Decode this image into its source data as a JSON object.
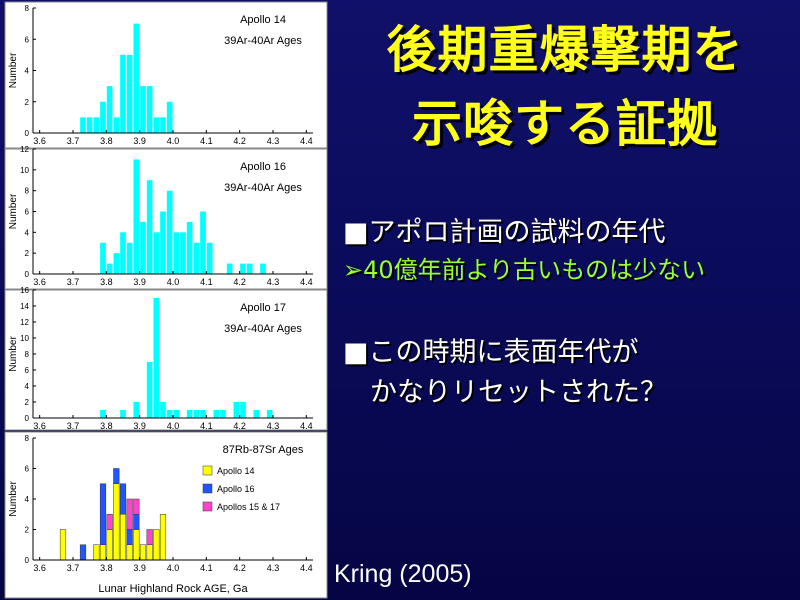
{
  "slide": {
    "title_line1": "後期重爆撃期を",
    "title_line2": "示唆する証拠",
    "bullet1": "■アポロ計画の試料の年代",
    "sub_bullet1": "➢40億年前より古いものは少ない",
    "bullet2_line1": "■この時期に表面年代が",
    "bullet2_line2": "かなりリセットされた？",
    "citation": "Kring (2005)"
  },
  "colors": {
    "background": "#0b0b5c",
    "title": "#ffff1a",
    "bullet": "#ffffff",
    "sub_bullet": "#99ff33",
    "panel_bg": "#ffffff",
    "apollo14": "#ffff00",
    "apollo16": "#2255ff",
    "apollo15_17": "#ff44cc",
    "cyan_bar": "#00ffff"
  },
  "chart_data": [
    {
      "type": "bar",
      "title": "Apollo 14",
      "subtitle": "39Ar-40Ar Ages",
      "ylabel": "Number",
      "ylim": [
        0,
        8
      ],
      "yticks": [
        0,
        2,
        4,
        6,
        8
      ],
      "xlim": [
        3.58,
        4.42
      ],
      "xticks": [
        "3.6",
        "3.7",
        "3.8",
        "3.9",
        "4.0",
        "4.1",
        "4.2",
        "4.3",
        "4.4"
      ],
      "bin_width": 0.02,
      "series": [
        {
          "color": "#00ffff",
          "bins": [
            {
              "x": 3.73,
              "value": 1
            },
            {
              "x": 3.75,
              "value": 1
            },
            {
              "x": 3.77,
              "value": 1
            },
            {
              "x": 3.79,
              "value": 2
            },
            {
              "x": 3.81,
              "value": 3
            },
            {
              "x": 3.83,
              "value": 1
            },
            {
              "x": 3.85,
              "value": 5
            },
            {
              "x": 3.87,
              "value": 5
            },
            {
              "x": 3.89,
              "value": 7
            },
            {
              "x": 3.91,
              "value": 3
            },
            {
              "x": 3.93,
              "value": 3
            },
            {
              "x": 3.95,
              "value": 1
            },
            {
              "x": 3.97,
              "value": 1
            },
            {
              "x": 3.99,
              "value": 2
            }
          ]
        }
      ]
    },
    {
      "type": "bar",
      "title": "Apollo 16",
      "subtitle": "39Ar-40Ar Ages",
      "ylabel": "Number",
      "ylim": [
        0,
        12
      ],
      "yticks": [
        0,
        2,
        4,
        6,
        8,
        10,
        12
      ],
      "xlim": [
        3.58,
        4.42
      ],
      "xticks": [
        "3.6",
        "3.7",
        "3.8",
        "3.9",
        "4.0",
        "4.1",
        "4.2",
        "4.3",
        "4.4"
      ],
      "bin_width": 0.02,
      "series": [
        {
          "color": "#00ffff",
          "bins": [
            {
              "x": 3.79,
              "value": 3
            },
            {
              "x": 3.81,
              "value": 1
            },
            {
              "x": 3.83,
              "value": 2
            },
            {
              "x": 3.85,
              "value": 4
            },
            {
              "x": 3.87,
              "value": 3
            },
            {
              "x": 3.89,
              "value": 11
            },
            {
              "x": 3.91,
              "value": 5
            },
            {
              "x": 3.93,
              "value": 9
            },
            {
              "x": 3.95,
              "value": 4
            },
            {
              "x": 3.97,
              "value": 6
            },
            {
              "x": 3.99,
              "value": 8
            },
            {
              "x": 4.01,
              "value": 4
            },
            {
              "x": 4.03,
              "value": 4
            },
            {
              "x": 4.05,
              "value": 5
            },
            {
              "x": 4.07,
              "value": 3
            },
            {
              "x": 4.09,
              "value": 6
            },
            {
              "x": 4.11,
              "value": 3
            },
            {
              "x": 4.17,
              "value": 1
            },
            {
              "x": 4.21,
              "value": 1
            },
            {
              "x": 4.23,
              "value": 1
            },
            {
              "x": 4.27,
              "value": 1
            }
          ]
        }
      ]
    },
    {
      "type": "bar",
      "title": "Apollo 17",
      "subtitle": "39Ar-40Ar Ages",
      "ylabel": "Number",
      "ylim": [
        0,
        16
      ],
      "yticks": [
        0,
        2,
        4,
        6,
        8,
        10,
        12,
        14,
        16
      ],
      "xlim": [
        3.58,
        4.42
      ],
      "xticks": [
        "3.6",
        "3.7",
        "3.8",
        "3.9",
        "4.0",
        "4.1",
        "4.2",
        "4.3",
        "4.4"
      ],
      "bin_width": 0.02,
      "series": [
        {
          "color": "#00ffff",
          "bins": [
            {
              "x": 3.79,
              "value": 1
            },
            {
              "x": 3.85,
              "value": 1
            },
            {
              "x": 3.89,
              "value": 2
            },
            {
              "x": 3.93,
              "value": 7
            },
            {
              "x": 3.95,
              "value": 15
            },
            {
              "x": 3.97,
              "value": 2
            },
            {
              "x": 3.99,
              "value": 1
            },
            {
              "x": 4.01,
              "value": 1
            },
            {
              "x": 4.05,
              "value": 1
            },
            {
              "x": 4.07,
              "value": 1
            },
            {
              "x": 4.09,
              "value": 1
            },
            {
              "x": 4.13,
              "value": 1
            },
            {
              "x": 4.15,
              "value": 1
            },
            {
              "x": 4.19,
              "value": 2
            },
            {
              "x": 4.21,
              "value": 2
            },
            {
              "x": 4.25,
              "value": 1
            },
            {
              "x": 4.29,
              "value": 1
            }
          ]
        }
      ]
    },
    {
      "type": "bar",
      "stacked": true,
      "title": "87Rb-87Sr Ages",
      "ylabel": "Number",
      "xlabel": "Lunar Highland Rock AGE, Ga",
      "ylim": [
        0,
        8
      ],
      "yticks": [
        0,
        2,
        4,
        6,
        8
      ],
      "xlim": [
        3.58,
        4.42
      ],
      "xticks": [
        "3.6",
        "3.7",
        "3.8",
        "3.9",
        "4.0",
        "4.1",
        "4.2",
        "4.3",
        "4.4"
      ],
      "bin_width": 0.02,
      "legend_position": "right",
      "series": [
        {
          "name": "Apollo 14",
          "color": "#ffff00",
          "bins": [
            {
              "x": 3.67,
              "value": 2
            },
            {
              "x": 3.77,
              "value": 1
            },
            {
              "x": 3.79,
              "value": 1
            },
            {
              "x": 3.81,
              "value": 2
            },
            {
              "x": 3.83,
              "value": 5
            },
            {
              "x": 3.85,
              "value": 3
            },
            {
              "x": 3.87,
              "value": 1
            },
            {
              "x": 3.89,
              "value": 2
            },
            {
              "x": 3.91,
              "value": 1
            },
            {
              "x": 3.93,
              "value": 1
            },
            {
              "x": 3.95,
              "value": 2
            },
            {
              "x": 3.97,
              "value": 3
            }
          ]
        },
        {
          "name": "Apollo 16",
          "color": "#2255ff",
          "bins": [
            {
              "x": 3.73,
              "value": 1
            },
            {
              "x": 3.79,
              "value": 4
            },
            {
              "x": 3.83,
              "value": 1
            },
            {
              "x": 3.85,
              "value": 2
            },
            {
              "x": 3.87,
              "value": 1
            },
            {
              "x": 3.89,
              "value": 1
            }
          ]
        },
        {
          "name": "Apollos 15 & 17",
          "color": "#ff44cc",
          "bins": [
            {
              "x": 3.81,
              "value": 1
            },
            {
              "x": 3.87,
              "value": 2
            },
            {
              "x": 3.89,
              "value": 1
            },
            {
              "x": 3.93,
              "value": 1
            }
          ]
        }
      ]
    }
  ]
}
